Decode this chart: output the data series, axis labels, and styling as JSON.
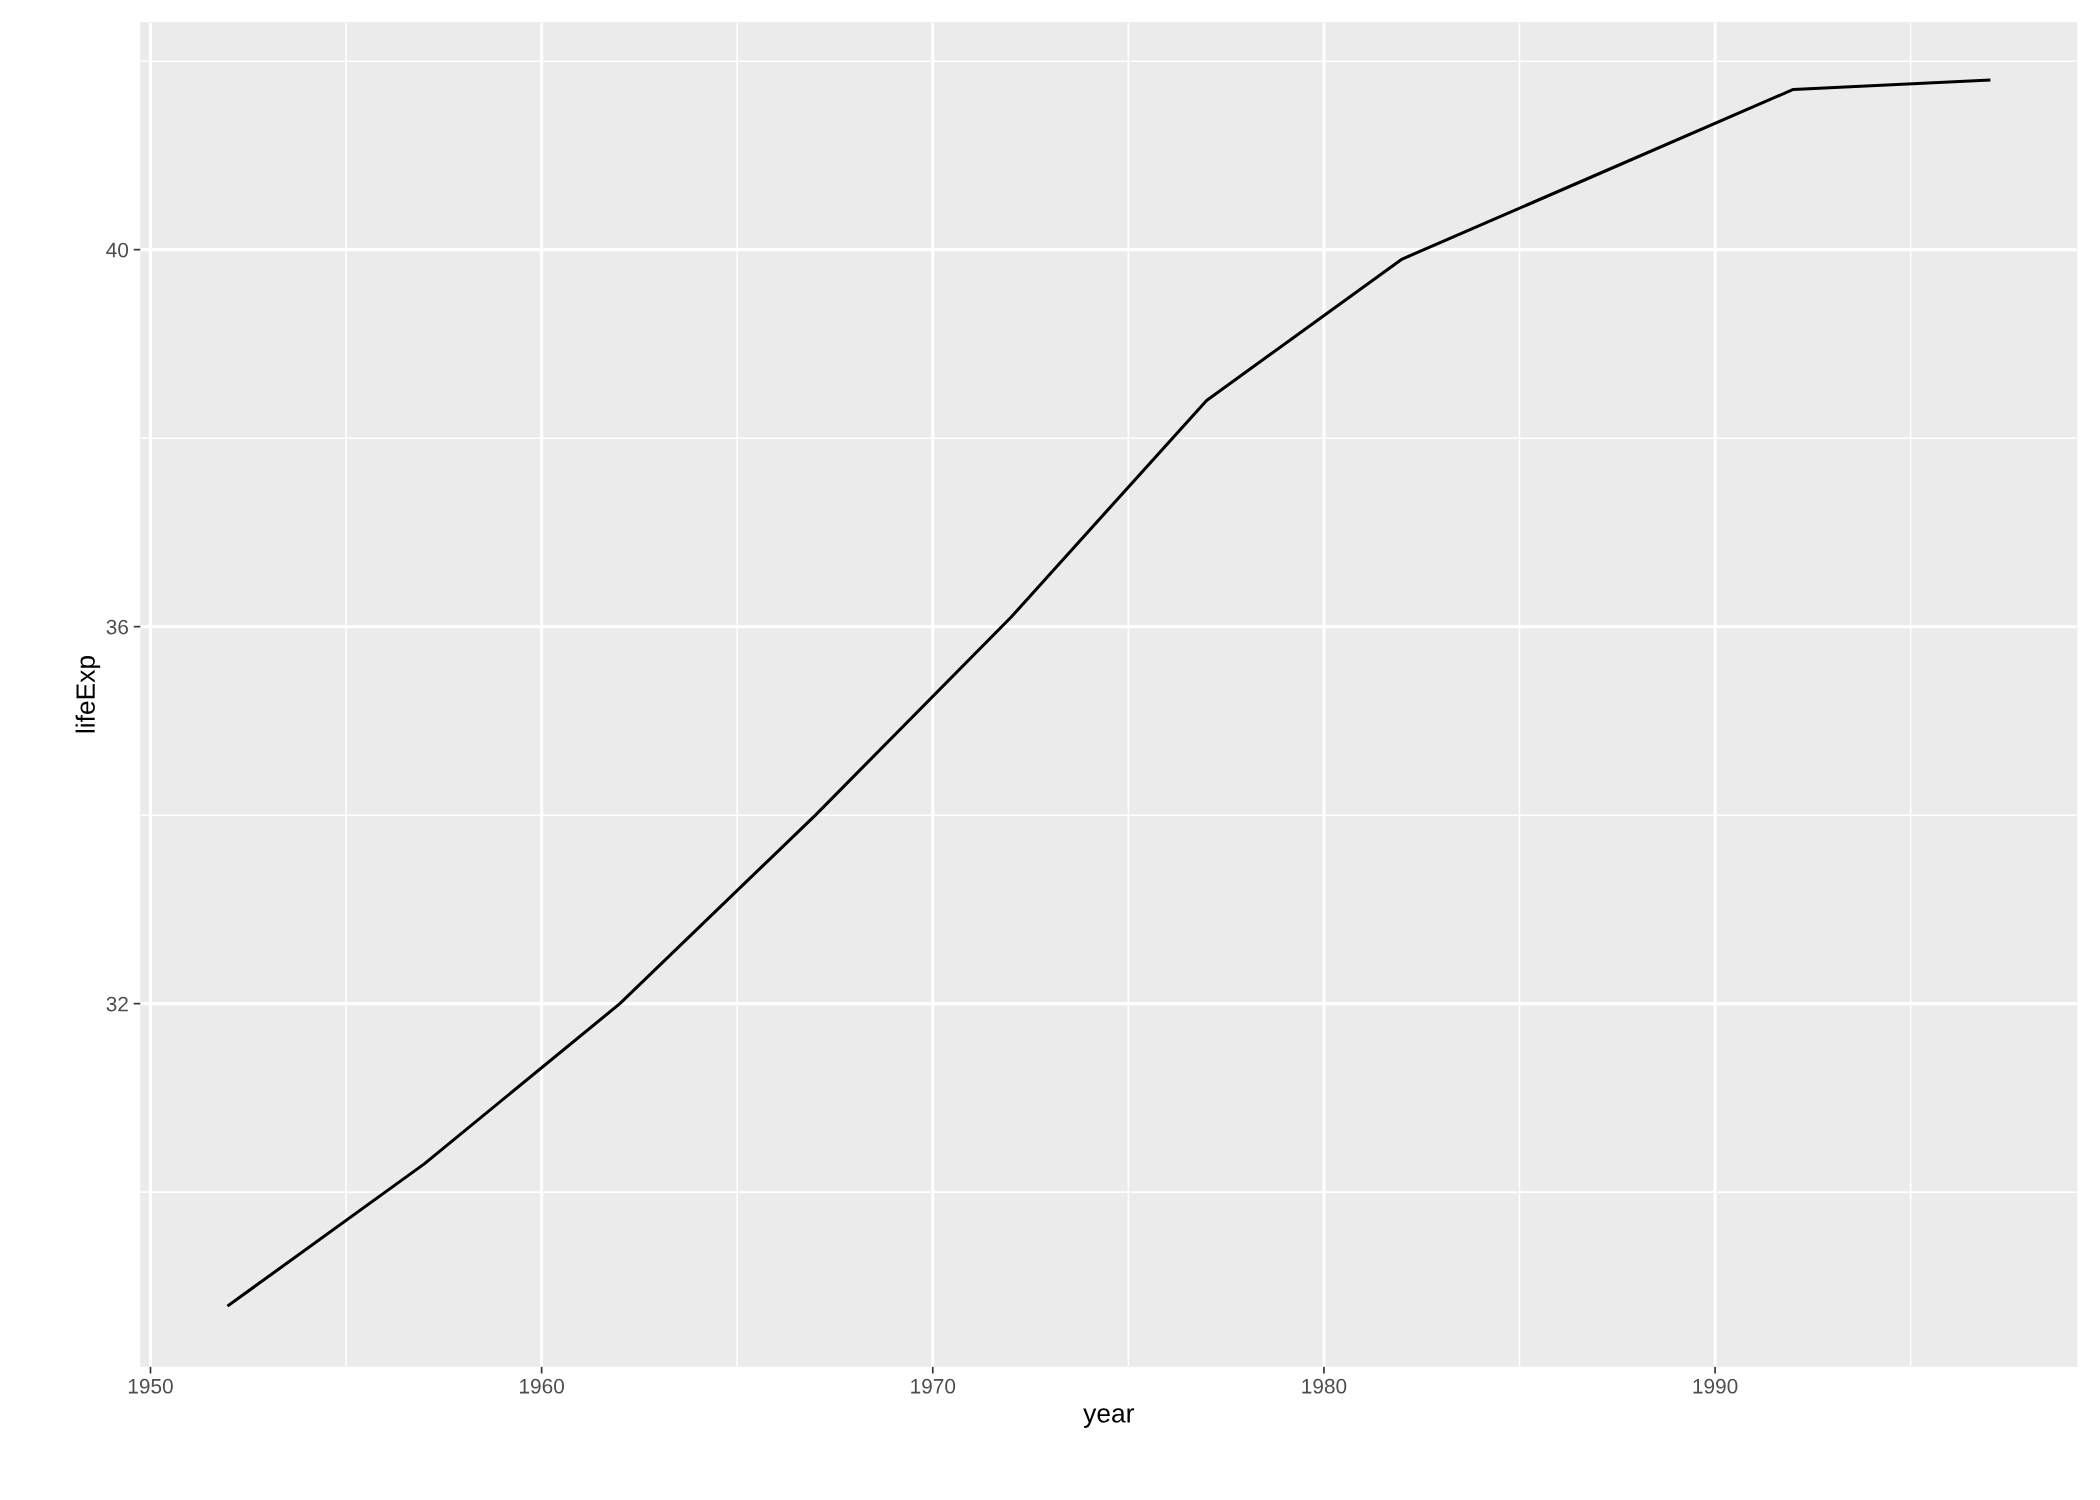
{
  "chart_data": {
    "type": "line",
    "xlabel": "year",
    "ylabel": "lifeExp",
    "x": [
      1952,
      1957,
      1962,
      1967,
      1972,
      1977,
      1982,
      1987,
      1992,
      1997
    ],
    "series": [
      {
        "color": "#000000",
        "values": [
          28.8,
          30.3,
          32.0,
          34.0,
          36.1,
          38.4,
          39.9,
          40.8,
          41.7,
          41.8
        ]
      }
    ],
    "xlim": [
      1949.75,
      1999.25
    ],
    "xticks": [
      1950,
      1960,
      1970,
      1980,
      1990
    ],
    "ylim": [
      28.15,
      42.41
    ],
    "yticks": [
      32,
      36,
      40
    ],
    "grid": true,
    "legend": false,
    "marker": "none",
    "line_style": "solid"
  }
}
